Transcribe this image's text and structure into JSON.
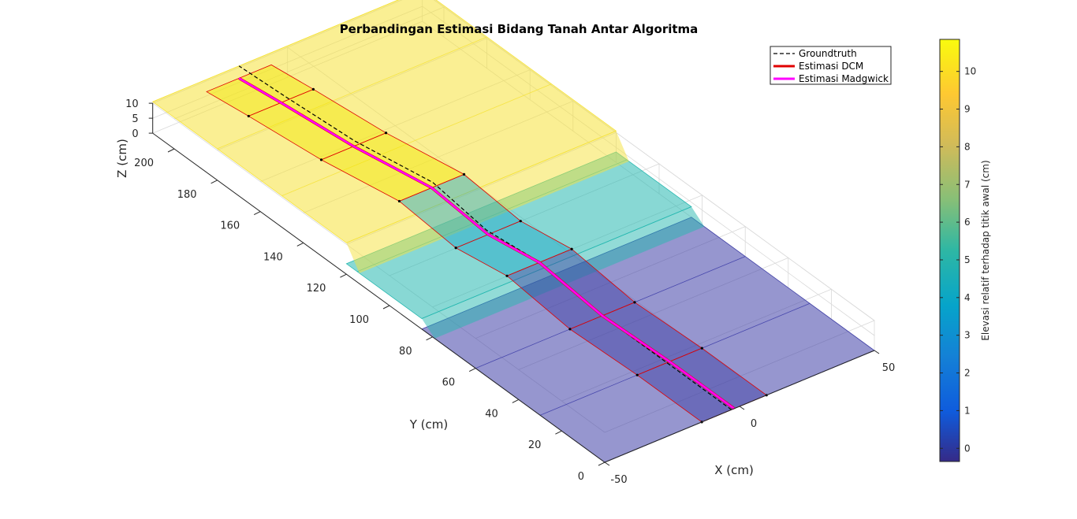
{
  "chart_data": {
    "type": "surface3d",
    "title": "Perbandingan Estimasi Bidang Tanah Antar Algoritma",
    "xlabel": "X (cm)",
    "ylabel": "Y (cm)",
    "zlabel": "Z (cm)",
    "xlim": [
      -50,
      50
    ],
    "ylim": [
      0,
      210
    ],
    "zlim": [
      0,
      10
    ],
    "x_ticks": [
      -50,
      0,
      50
    ],
    "y_ticks": [
      0,
      20,
      40,
      60,
      80,
      100,
      120,
      140,
      160,
      180,
      200
    ],
    "z_ticks": [
      0,
      5,
      10
    ],
    "grid": true,
    "legend_position": "top-right",
    "legend": [
      {
        "label": "Groundtruth",
        "color": "#000000",
        "style": "dashed"
      },
      {
        "label": "Estimasi DCM",
        "color": "#e00000",
        "style": "solid"
      },
      {
        "label": "Estimasi Madgwick",
        "color": "#ff00ff",
        "style": "solid"
      }
    ],
    "ground_surface": {
      "sections": [
        {
          "y_range": [
            0,
            85
          ],
          "z": 0,
          "color": "#3f3fa8"
        },
        {
          "y_range": [
            85,
            120
          ],
          "z": 3.5,
          "color": "#26b8b0"
        },
        {
          "y_range": [
            120,
            210
          ],
          "z": 10.5,
          "color": "#f5e23a"
        }
      ]
    },
    "series": [
      {
        "name": "Groundtruth",
        "points": [
          [
            -3,
            0
          ],
          [
            -3,
            30
          ],
          [
            -3,
            60
          ],
          [
            -4,
            90
          ],
          [
            -6,
            110
          ],
          [
            -10,
            130
          ],
          [
            -15,
            160
          ],
          [
            -17,
            190
          ],
          [
            -18,
            210
          ]
        ]
      },
      {
        "name": "Estimasi DCM",
        "points": [
          [
            -2,
            0
          ],
          [
            -2,
            30
          ],
          [
            -3,
            60
          ],
          [
            -4,
            88
          ],
          [
            -7,
            108
          ],
          [
            -12,
            128
          ],
          [
            -17,
            158
          ],
          [
            -20,
            188
          ],
          [
            -22,
            205
          ]
        ]
      },
      {
        "name": "Estimasi Madgwick",
        "points": [
          [
            -2,
            0
          ],
          [
            -2,
            30
          ],
          [
            -3,
            60
          ],
          [
            -4,
            88
          ],
          [
            -7,
            108
          ],
          [
            -12,
            128
          ],
          [
            -17,
            158
          ],
          [
            -20,
            188
          ],
          [
            -22,
            205
          ]
        ]
      }
    ],
    "colorbar": {
      "label": "Elevasi relatif terhadap titik awal (cm)",
      "ticks": [
        0,
        1,
        2,
        3,
        4,
        5,
        6,
        7,
        8,
        9,
        10
      ],
      "range": [
        -0.35,
        10.85
      ],
      "colormap": "parula"
    }
  }
}
